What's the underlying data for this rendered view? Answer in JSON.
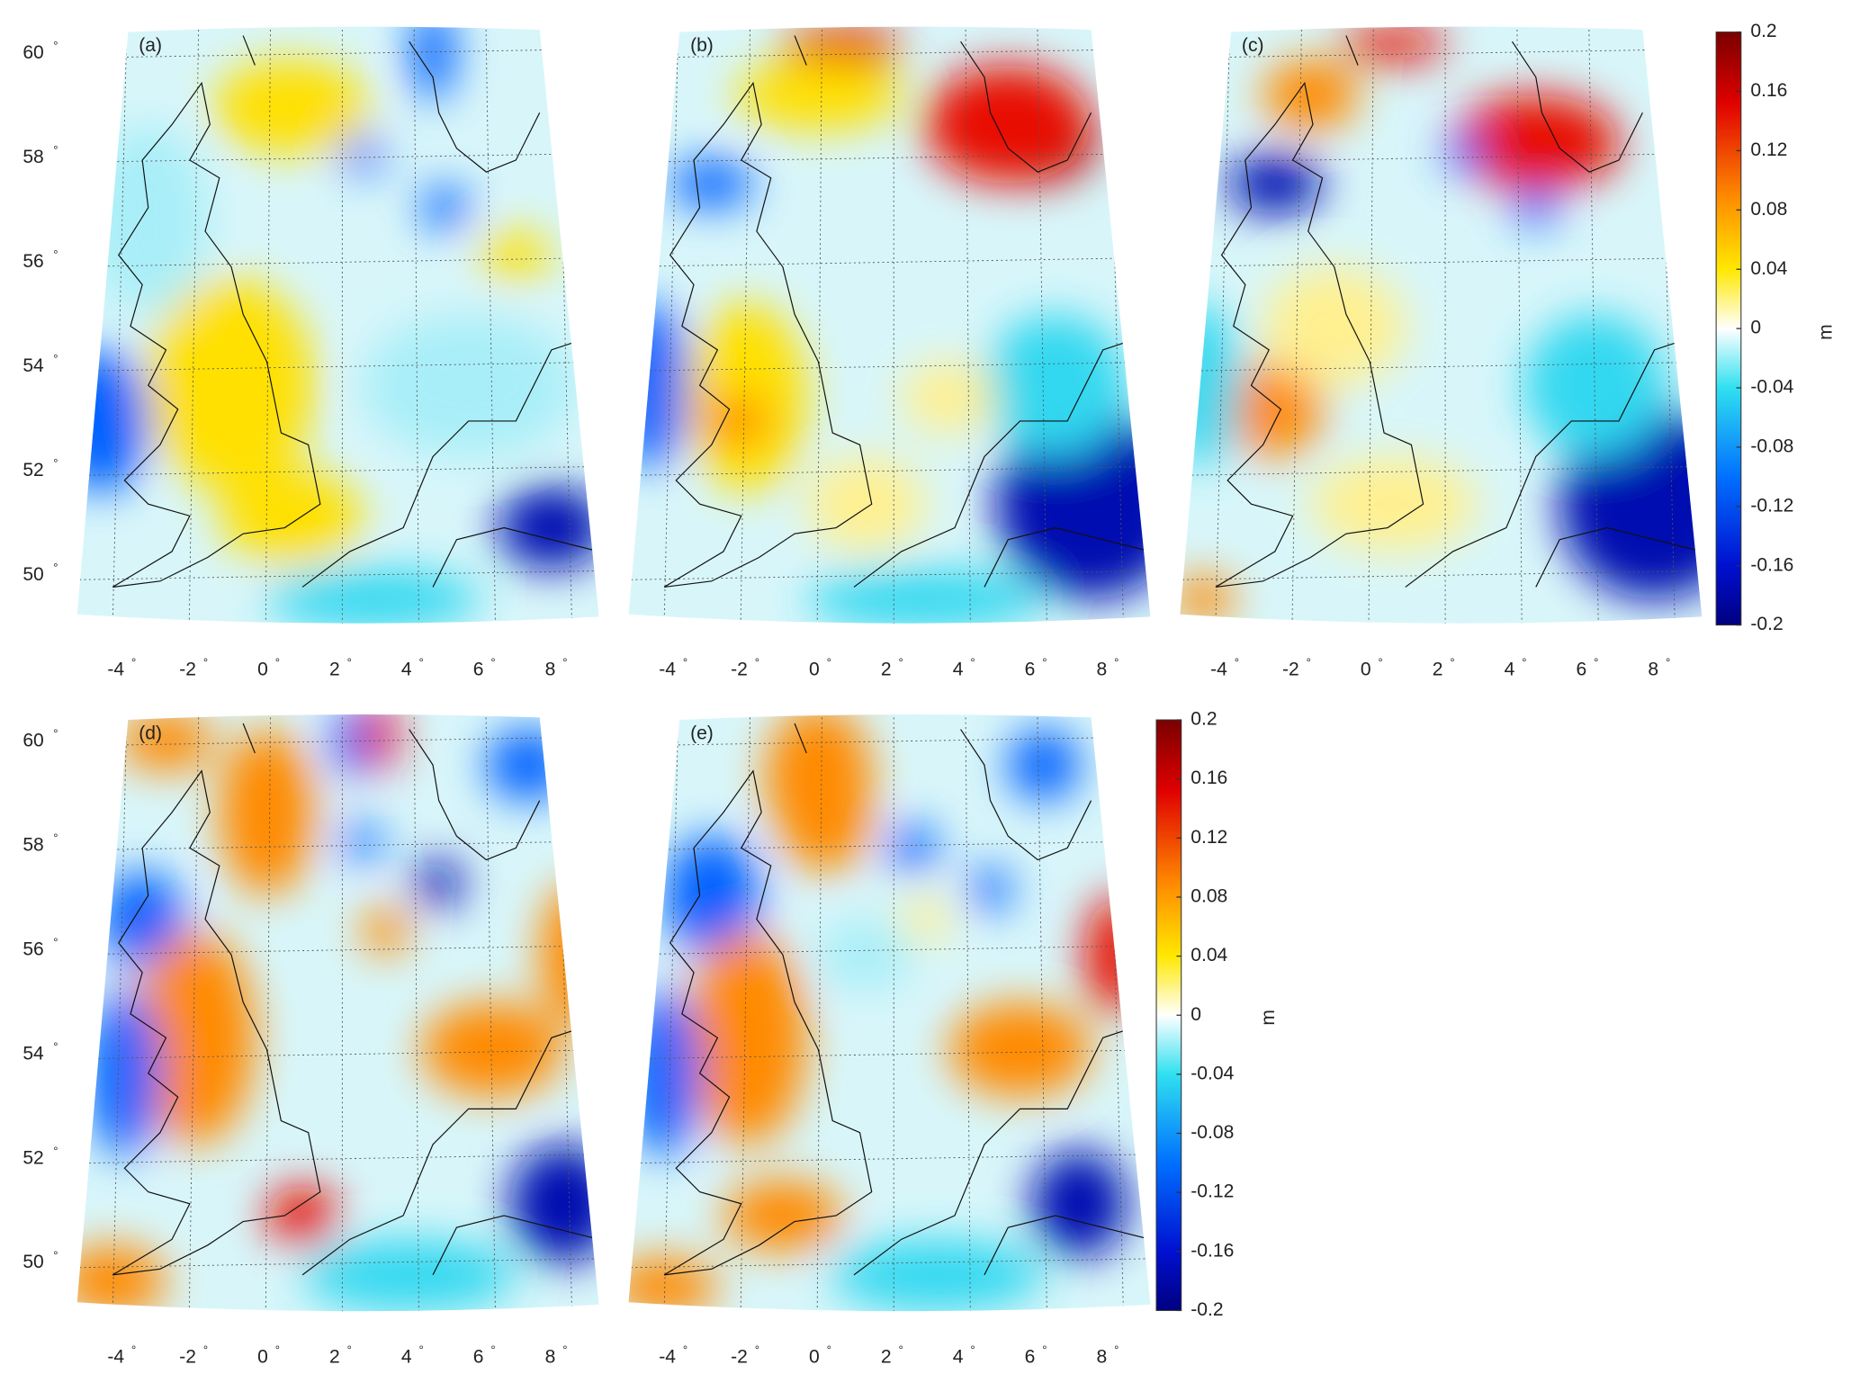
{
  "panels": [
    {
      "label": "(a)"
    },
    {
      "label": "(b)"
    },
    {
      "label": "(c)"
    },
    {
      "label": "(d)"
    },
    {
      "label": "(e)"
    }
  ],
  "lat_labels": [
    60,
    58,
    56,
    54,
    52,
    50
  ],
  "lon_labels": [
    -4,
    -2,
    0,
    2,
    4,
    6,
    8
  ],
  "degree": "°",
  "colorbars": [
    {
      "label": "m",
      "range": [
        -0.2,
        0.2
      ],
      "ticks": [
        0.2,
        0.16,
        0.12,
        0.08,
        0.04,
        0,
        -0.04,
        -0.08,
        -0.12,
        -0.16,
        -0.2
      ]
    },
    {
      "label": "m",
      "range": [
        -0.2,
        0.2
      ],
      "ticks": [
        0.2,
        0.16,
        0.12,
        0.08,
        0.04,
        0,
        -0.04,
        -0.08,
        -0.12,
        -0.16,
        -0.2
      ]
    }
  ]
}
